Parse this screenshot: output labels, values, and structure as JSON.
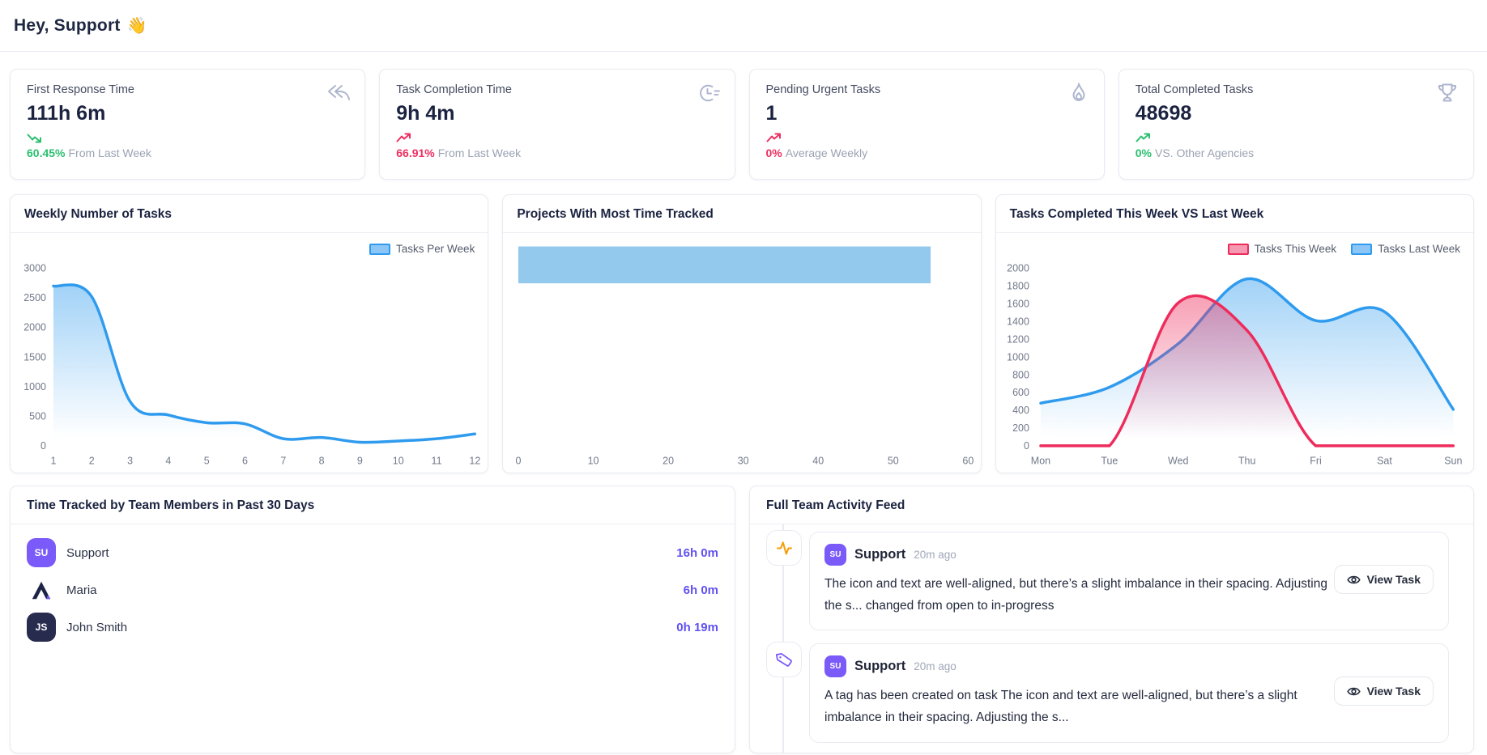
{
  "page": {
    "greeting": "Hey, Support",
    "wave_emoji": "👋"
  },
  "stats": {
    "cards": [
      {
        "label": "First Response Time",
        "value": "111h 6m",
        "percent": "60.45%",
        "suffix": "From Last Week",
        "trend": "down",
        "trend_color": "#2abf6f",
        "icon": "reply-all-icon"
      },
      {
        "label": "Task Completion Time",
        "value": "9h 4m",
        "percent": "66.91%",
        "suffix": "From Last Week",
        "trend": "up",
        "trend_color": "#ee2e60",
        "icon": "clock-speed-icon"
      },
      {
        "label": "Pending Urgent Tasks",
        "value": "1",
        "percent": "0%",
        "suffix": "Average Weekly",
        "trend": "up",
        "trend_color": "#ee2e60",
        "icon": "flame-icon"
      },
      {
        "label": "Total Completed Tasks",
        "value": "48698",
        "percent": "0%",
        "suffix": "VS. Other Agencies",
        "trend": "up",
        "trend_color": "#2abf6f",
        "icon": "trophy-icon"
      }
    ]
  },
  "chart_data": [
    {
      "type": "area",
      "title": "Weekly Number of Tasks",
      "categories": [
        "1",
        "2",
        "3",
        "4",
        "5",
        "6",
        "7",
        "8",
        "9",
        "10",
        "11",
        "12"
      ],
      "series": [
        {
          "name": "Tasks Per Week",
          "values": [
            2700,
            2520,
            750,
            520,
            390,
            370,
            120,
            140,
            60,
            80,
            120,
            200
          ],
          "color": "#2f9bee"
        }
      ],
      "ylim": [
        0,
        3000
      ],
      "yticks": [
        3000,
        2500,
        2000,
        1500,
        1000,
        500,
        0
      ],
      "grid": false,
      "legend_position": "top-right"
    },
    {
      "type": "bar",
      "orientation": "horizontal",
      "title": "Projects With Most Time Tracked",
      "values": [
        55
      ],
      "xlim": [
        0,
        60
      ],
      "xticks": [
        0,
        10,
        20,
        30,
        40,
        50,
        60
      ],
      "bar_color": "#92c9ed",
      "grid": false
    },
    {
      "type": "area",
      "title": "Tasks Completed This Week VS Last Week",
      "categories": [
        "Mon",
        "Tue",
        "Wed",
        "Thu",
        "Fri",
        "Sat",
        "Sun"
      ],
      "series": [
        {
          "name": "Tasks This Week",
          "values": [
            0,
            0,
            1610,
            1300,
            0,
            0,
            0
          ],
          "color": "#ee2c5c"
        },
        {
          "name": "Tasks Last Week",
          "values": [
            480,
            660,
            1150,
            1880,
            1410,
            1510,
            410
          ],
          "color": "#2f9bee"
        }
      ],
      "ylim": [
        0,
        2000
      ],
      "yticks": [
        2000,
        1800,
        1600,
        1400,
        1200,
        1000,
        800,
        600,
        400,
        200,
        0
      ],
      "grid": false,
      "legend_position": "top-right"
    }
  ],
  "team": {
    "title": "Time Tracked by Team Members in Past 30 Days",
    "members": [
      {
        "initials": "SU",
        "name": "Support",
        "time": "16h 0m"
      },
      {
        "initials": "A",
        "name": "Maria",
        "time": "6h 0m"
      },
      {
        "initials": "JS",
        "name": "John Smith",
        "time": "0h 19m"
      }
    ]
  },
  "feed": {
    "title": "Full Team Activity Feed",
    "view_task_label": "View Task",
    "items": [
      {
        "icon": "activity-pulse-icon",
        "author": "Support",
        "author_initials": "SU",
        "time": "20m ago",
        "text": "The icon and text are well-aligned, but there’s a slight imbalance in their spacing. Adjusting the s... changed from open to in-progress"
      },
      {
        "icon": "tag-icon",
        "author": "Support",
        "author_initials": "SU",
        "time": "20m ago",
        "text": "A tag has been created on task The icon and text are well-aligned, but there’s a slight imbalance in their spacing. Adjusting the s..."
      }
    ]
  }
}
